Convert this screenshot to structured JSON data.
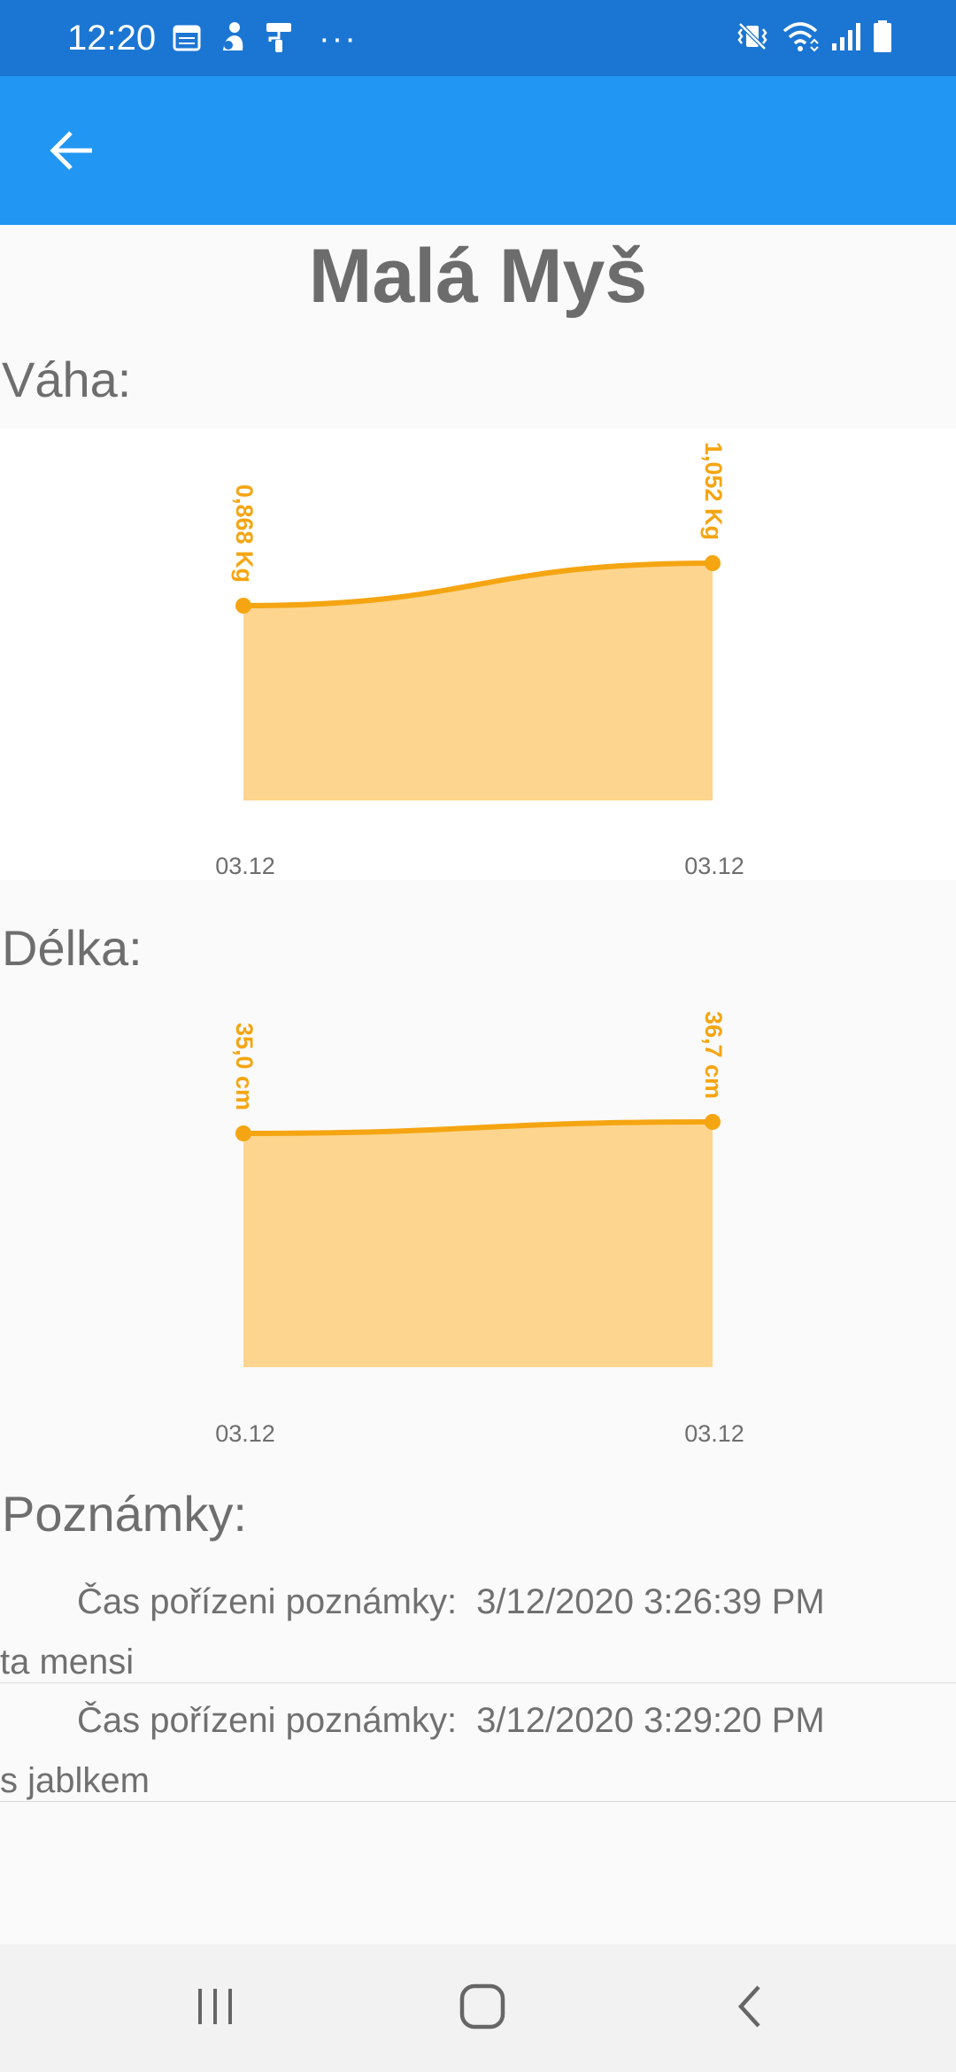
{
  "status_bar": {
    "time": "12:20",
    "left_icons": [
      "calendar-icon",
      "person-icon",
      "paint-roller-icon"
    ],
    "overflow": "···",
    "right_icons": [
      "vibrate-mute-icon",
      "wifi-icon",
      "signal-icon",
      "battery-icon"
    ]
  },
  "app_bar": {
    "back_icon": "arrow-left-icon",
    "color": "#2196f3"
  },
  "pet": {
    "name": "Malá Myš"
  },
  "weight": {
    "label": "Váha:",
    "chart_data": {
      "type": "area",
      "categories": [
        "03.12",
        "03.12"
      ],
      "values": [
        0.868,
        1.052
      ],
      "value_labels": [
        "0,868 Kg",
        "1,052 Kg"
      ],
      "color": "#f5a512",
      "fill": "#fdd58e",
      "grid": false
    }
  },
  "length": {
    "label": "Délka:",
    "chart_data": {
      "type": "area",
      "categories": [
        "03.12",
        "03.12"
      ],
      "values": [
        35.0,
        36.7
      ],
      "value_labels": [
        "35,0 cm",
        "36,7 cm"
      ],
      "color": "#f5a512",
      "fill": "#fdd58e",
      "grid": false
    }
  },
  "notes": {
    "label": "Poznámky:",
    "items": [
      {
        "time_label": "Čas pořízeni poznámky:",
        "time": "3/12/2020 3:26:39 PM",
        "text": "ta mensi"
      },
      {
        "time_label": "Čas pořízeni poznámky:",
        "time": "3/12/2020 3:29:20 PM",
        "text": "s jablkem"
      }
    ]
  },
  "nav_bar": {
    "items": [
      "recent-apps-icon",
      "home-icon",
      "back-icon"
    ]
  }
}
